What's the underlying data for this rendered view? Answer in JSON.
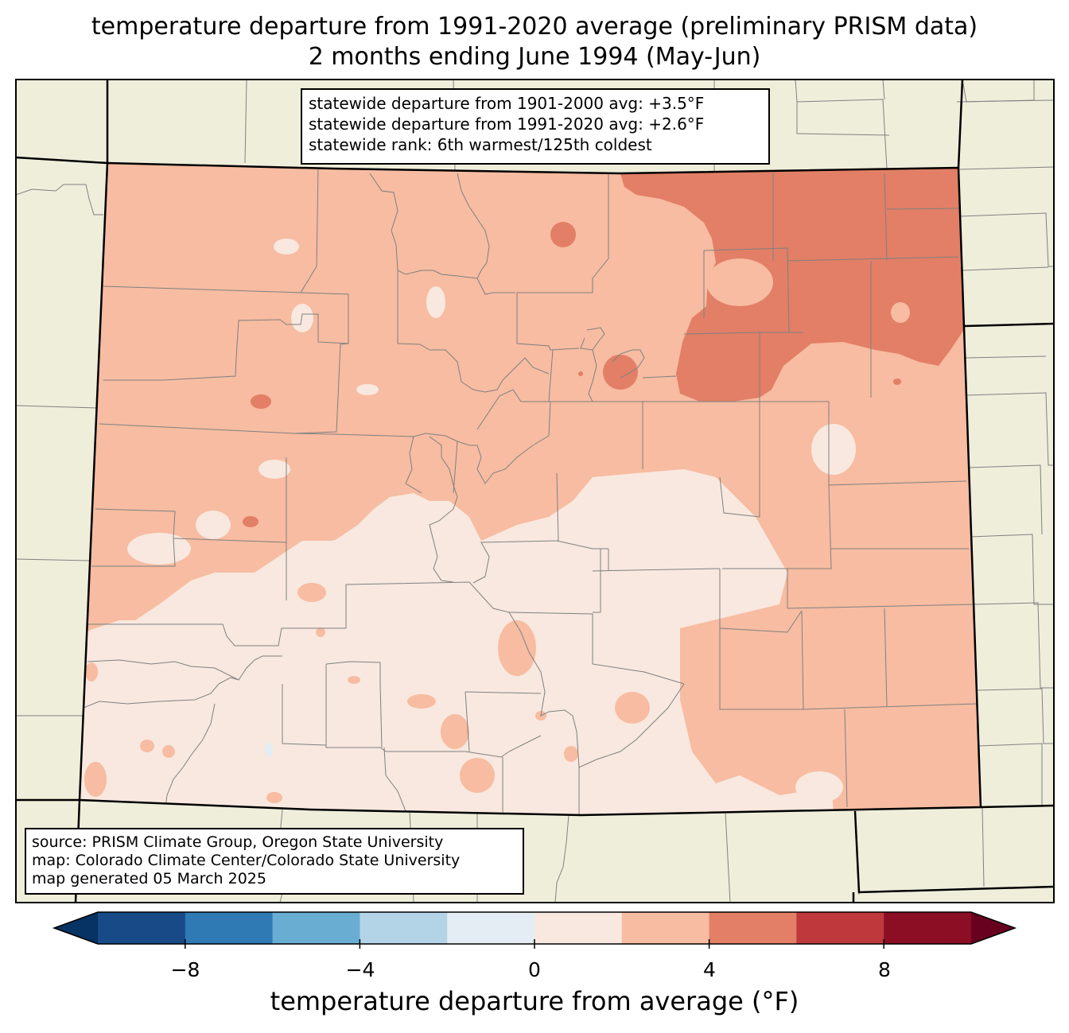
{
  "title": {
    "line1": "temperature departure from 1991-2020 average (preliminary PRISM data)",
    "line2": "2 months ending June 1994 (May-Jun)"
  },
  "stats": {
    "line1": "statewide departure from 1901-2000 avg: +3.5°F",
    "line2": "statewide departure from 1991-2020 avg: +2.6°F",
    "line3": "statewide rank: 6th warmest/125th coldest"
  },
  "source": {
    "line1": "source: PRISM Climate Group, Oregon State University",
    "line2": "map: Colorado Climate Center/Colorado State University",
    "line3": "map generated 05 March 2025"
  },
  "colorbar": {
    "label": "temperature departure from average (°F)",
    "ticks": [
      "−8",
      "−4",
      "0",
      "4",
      "8"
    ],
    "bins": [
      {
        "from": -10,
        "to": -8,
        "color": "#174a87"
      },
      {
        "from": -8,
        "to": -6,
        "color": "#2f79b5"
      },
      {
        "from": -6,
        "to": -4,
        "color": "#6aadd2"
      },
      {
        "from": -4,
        "to": -2,
        "color": "#b2d4e6"
      },
      {
        "from": -2,
        "to": 0,
        "color": "#e3edf3"
      },
      {
        "from": 0,
        "to": 2,
        "color": "#f8e8df"
      },
      {
        "from": 2,
        "to": 4,
        "color": "#f7bca1"
      },
      {
        "from": 4,
        "to": 6,
        "color": "#e27f66"
      },
      {
        "from": 6,
        "to": 8,
        "color": "#bf383c"
      },
      {
        "from": 8,
        "to": 10,
        "color": "#8b0e25"
      }
    ],
    "under_color": "#063264",
    "over_color": "#68011f"
  },
  "colors": {
    "background_land": "#efeedb",
    "county_lines": "#808080",
    "state_lines": "#000000"
  }
}
